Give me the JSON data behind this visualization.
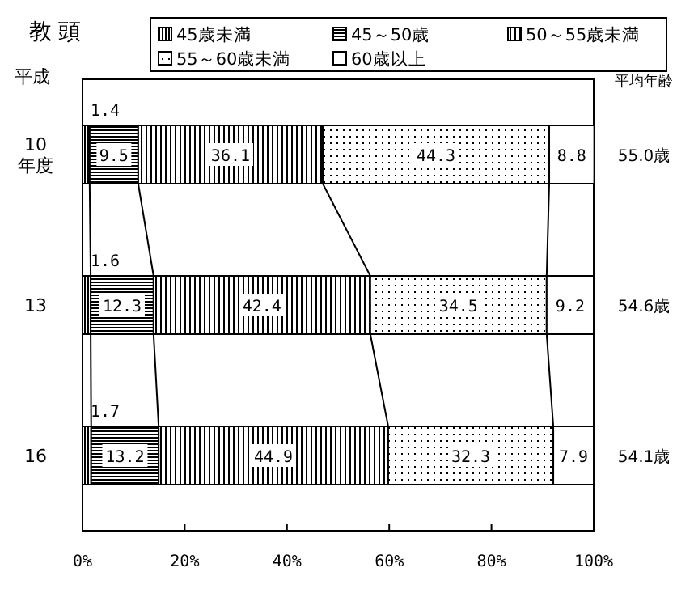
{
  "chart_data": {
    "type": "bar",
    "orientation": "horizontal",
    "stacked": true,
    "title": "教 頭",
    "ylabel": "平成",
    "categories": [
      "10\n年度",
      "13",
      "16"
    ],
    "series": [
      {
        "name": "45歳未満",
        "color": "#000000",
        "values": [
          1.4,
          1.6,
          1.7
        ]
      },
      {
        "name": "45～50歳",
        "color": "#000000",
        "values": [
          9.5,
          12.3,
          13.2
        ]
      },
      {
        "name": "50～55歳未満",
        "color": "#000000",
        "values": [
          36.1,
          42.4,
          44.9
        ]
      },
      {
        "name": "55～60歳未満",
        "color": "#000000",
        "values": [
          44.3,
          34.5,
          32.3
        ]
      },
      {
        "name": "60歳以上",
        "color": "#ffffff",
        "values": [
          8.8,
          9.2,
          7.9
        ]
      }
    ],
    "xlim": [
      0,
      100
    ],
    "xticks": [
      {
        "value": 0,
        "label": "0%"
      },
      {
        "value": 20,
        "label": "20%"
      },
      {
        "value": 40,
        "label": "40%"
      },
      {
        "value": 60,
        "label": "60%"
      },
      {
        "value": 80,
        "label": "80%"
      },
      {
        "value": 100,
        "label": "100%"
      }
    ],
    "data_labels": true,
    "legend": "top",
    "grid": false,
    "annotations": [
      "平均年齢",
      "55.0歳",
      "54.6歳",
      "54.1歳"
    ]
  }
}
